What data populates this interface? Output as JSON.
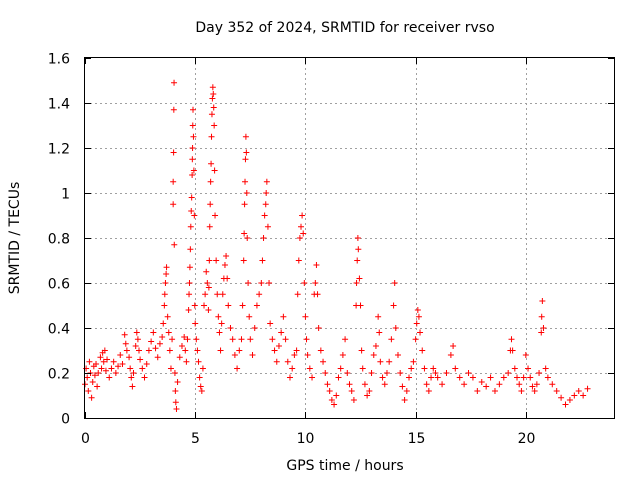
{
  "chart_data": {
    "type": "scatter",
    "title": "Day 352 of 2024, SRMTID for receiver rvso",
    "xlabel": "GPS time / hours",
    "ylabel": "SRMTID / TECUs",
    "xlim": [
      0,
      24
    ],
    "ylim": [
      0,
      1.6
    ],
    "xticks": [
      0,
      5,
      10,
      15,
      20
    ],
    "yticks": [
      0,
      0.2,
      0.4,
      0.6,
      0.8,
      1,
      1.2,
      1.4,
      1.6
    ],
    "grid": true,
    "marker": "plus",
    "color": "#ff0000",
    "series": [
      {
        "name": "SRMTID",
        "points": [
          [
            0.0,
            0.15
          ],
          [
            0.05,
            0.22
          ],
          [
            0.1,
            0.18
          ],
          [
            0.15,
            0.12
          ],
          [
            0.2,
            0.25
          ],
          [
            0.25,
            0.2
          ],
          [
            0.3,
            0.09
          ],
          [
            0.35,
            0.16
          ],
          [
            0.4,
            0.23
          ],
          [
            0.45,
            0.19
          ],
          [
            0.5,
            0.24
          ],
          [
            0.55,
            0.14
          ],
          [
            0.6,
            0.2
          ],
          [
            0.7,
            0.27
          ],
          [
            0.75,
            0.22
          ],
          [
            0.8,
            0.29
          ],
          [
            0.85,
            0.25
          ],
          [
            0.9,
            0.3
          ],
          [
            0.95,
            0.21
          ],
          [
            1.0,
            0.26
          ],
          [
            1.1,
            0.18
          ],
          [
            1.2,
            0.22
          ],
          [
            1.3,
            0.25
          ],
          [
            1.4,
            0.2
          ],
          [
            1.5,
            0.23
          ],
          [
            1.6,
            0.28
          ],
          [
            1.7,
            0.24
          ],
          [
            1.8,
            0.37
          ],
          [
            1.85,
            0.33
          ],
          [
            1.9,
            0.3
          ],
          [
            2.0,
            0.27
          ],
          [
            2.05,
            0.22
          ],
          [
            2.1,
            0.18
          ],
          [
            2.15,
            0.14
          ],
          [
            2.2,
            0.2
          ],
          [
            2.3,
            0.32
          ],
          [
            2.35,
            0.38
          ],
          [
            2.4,
            0.35
          ],
          [
            2.45,
            0.3
          ],
          [
            2.5,
            0.26
          ],
          [
            2.6,
            0.22
          ],
          [
            2.7,
            0.18
          ],
          [
            2.8,
            0.24
          ],
          [
            2.9,
            0.3
          ],
          [
            3.0,
            0.34
          ],
          [
            3.1,
            0.38
          ],
          [
            3.2,
            0.31
          ],
          [
            3.3,
            0.27
          ],
          [
            3.4,
            0.33
          ],
          [
            3.5,
            0.36
          ],
          [
            3.55,
            0.42
          ],
          [
            3.6,
            0.5
          ],
          [
            3.62,
            0.55
          ],
          [
            3.65,
            0.6
          ],
          [
            3.68,
            0.64
          ],
          [
            3.7,
            0.67
          ],
          [
            3.75,
            0.45
          ],
          [
            3.8,
            0.38
          ],
          [
            3.85,
            0.3
          ],
          [
            3.9,
            0.22
          ],
          [
            3.95,
            0.35
          ],
          [
            4.0,
            0.95
          ],
          [
            4.0,
            1.05
          ],
          [
            4.02,
            1.18
          ],
          [
            4.03,
            1.37
          ],
          [
            4.04,
            1.49
          ],
          [
            4.05,
            0.77
          ],
          [
            4.08,
            0.2
          ],
          [
            4.1,
            0.12
          ],
          [
            4.12,
            0.07
          ],
          [
            4.15,
            0.04
          ],
          [
            4.2,
            0.16
          ],
          [
            4.3,
            0.27
          ],
          [
            4.4,
            0.32
          ],
          [
            4.5,
            0.36
          ],
          [
            4.55,
            0.3
          ],
          [
            4.6,
            0.25
          ],
          [
            4.65,
            0.35
          ],
          [
            4.7,
            0.48
          ],
          [
            4.72,
            0.55
          ],
          [
            4.74,
            0.6
          ],
          [
            4.76,
            0.67
          ],
          [
            4.78,
            0.75
          ],
          [
            4.8,
            0.85
          ],
          [
            4.82,
            0.92
          ],
          [
            4.84,
            0.98
          ],
          [
            4.86,
            1.08
          ],
          [
            4.87,
            1.15
          ],
          [
            4.88,
            1.2
          ],
          [
            4.89,
            1.3
          ],
          [
            4.9,
            1.37
          ],
          [
            4.92,
            1.25
          ],
          [
            4.94,
            1.1
          ],
          [
            4.96,
            0.9
          ],
          [
            4.98,
            0.5
          ],
          [
            5.0,
            0.42
          ],
          [
            5.05,
            0.35
          ],
          [
            5.1,
            0.3
          ],
          [
            5.15,
            0.25
          ],
          [
            5.2,
            0.18
          ],
          [
            5.25,
            0.14
          ],
          [
            5.3,
            0.12
          ],
          [
            5.35,
            0.22
          ],
          [
            5.4,
            0.5
          ],
          [
            5.45,
            0.55
          ],
          [
            5.5,
            0.65
          ],
          [
            5.55,
            0.6
          ],
          [
            5.6,
            0.48
          ],
          [
            5.62,
            0.58
          ],
          [
            5.64,
            0.7
          ],
          [
            5.66,
            0.85
          ],
          [
            5.68,
            0.95
          ],
          [
            5.7,
            1.05
          ],
          [
            5.72,
            1.13
          ],
          [
            5.74,
            1.25
          ],
          [
            5.76,
            1.35
          ],
          [
            5.78,
            1.42
          ],
          [
            5.8,
            1.47
          ],
          [
            5.82,
            1.44
          ],
          [
            5.84,
            1.38
          ],
          [
            5.86,
            1.3
          ],
          [
            5.88,
            1.1
          ],
          [
            5.9,
            0.9
          ],
          [
            5.95,
            0.7
          ],
          [
            6.0,
            0.55
          ],
          [
            6.05,
            0.45
          ],
          [
            6.1,
            0.38
          ],
          [
            6.15,
            0.3
          ],
          [
            6.2,
            0.42
          ],
          [
            6.25,
            0.55
          ],
          [
            6.3,
            0.62
          ],
          [
            6.35,
            0.68
          ],
          [
            6.4,
            0.72
          ],
          [
            6.45,
            0.62
          ],
          [
            6.5,
            0.5
          ],
          [
            6.6,
            0.4
          ],
          [
            6.7,
            0.35
          ],
          [
            6.8,
            0.28
          ],
          [
            6.9,
            0.22
          ],
          [
            7.0,
            0.3
          ],
          [
            7.1,
            0.35
          ],
          [
            7.15,
            0.5
          ],
          [
            7.2,
            0.7
          ],
          [
            7.22,
            0.82
          ],
          [
            7.24,
            0.95
          ],
          [
            7.26,
            1.05
          ],
          [
            7.28,
            1.15
          ],
          [
            7.3,
            1.25
          ],
          [
            7.32,
            1.18
          ],
          [
            7.34,
            1.0
          ],
          [
            7.36,
            0.8
          ],
          [
            7.4,
            0.6
          ],
          [
            7.45,
            0.45
          ],
          [
            7.5,
            0.35
          ],
          [
            7.6,
            0.28
          ],
          [
            7.7,
            0.4
          ],
          [
            7.8,
            0.5
          ],
          [
            7.9,
            0.55
          ],
          [
            8.0,
            0.6
          ],
          [
            8.05,
            0.7
          ],
          [
            8.1,
            0.8
          ],
          [
            8.15,
            0.9
          ],
          [
            8.2,
            0.95
          ],
          [
            8.22,
            1.0
          ],
          [
            8.25,
            1.05
          ],
          [
            8.3,
            0.85
          ],
          [
            8.35,
            0.6
          ],
          [
            8.4,
            0.42
          ],
          [
            8.5,
            0.35
          ],
          [
            8.6,
            0.3
          ],
          [
            8.7,
            0.25
          ],
          [
            8.8,
            0.32
          ],
          [
            8.9,
            0.38
          ],
          [
            9.0,
            0.45
          ],
          [
            9.1,
            0.35
          ],
          [
            9.2,
            0.25
          ],
          [
            9.3,
            0.18
          ],
          [
            9.4,
            0.22
          ],
          [
            9.5,
            0.28
          ],
          [
            9.6,
            0.3
          ],
          [
            9.65,
            0.55
          ],
          [
            9.7,
            0.7
          ],
          [
            9.75,
            0.8
          ],
          [
            9.8,
            0.85
          ],
          [
            9.85,
            0.9
          ],
          [
            9.9,
            0.82
          ],
          [
            9.95,
            0.6
          ],
          [
            10.0,
            0.45
          ],
          [
            10.05,
            0.35
          ],
          [
            10.1,
            0.28
          ],
          [
            10.2,
            0.22
          ],
          [
            10.3,
            0.18
          ],
          [
            10.4,
            0.55
          ],
          [
            10.45,
            0.6
          ],
          [
            10.5,
            0.68
          ],
          [
            10.55,
            0.55
          ],
          [
            10.6,
            0.4
          ],
          [
            10.7,
            0.3
          ],
          [
            10.8,
            0.25
          ],
          [
            10.9,
            0.2
          ],
          [
            11.0,
            0.15
          ],
          [
            11.1,
            0.12
          ],
          [
            11.2,
            0.08
          ],
          [
            11.3,
            0.06
          ],
          [
            11.4,
            0.1
          ],
          [
            11.5,
            0.18
          ],
          [
            11.6,
            0.22
          ],
          [
            11.7,
            0.28
          ],
          [
            11.8,
            0.35
          ],
          [
            11.9,
            0.2
          ],
          [
            12.0,
            0.15
          ],
          [
            12.1,
            0.12
          ],
          [
            12.2,
            0.08
          ],
          [
            12.3,
            0.5
          ],
          [
            12.32,
            0.6
          ],
          [
            12.35,
            0.7
          ],
          [
            12.38,
            0.8
          ],
          [
            12.4,
            0.75
          ],
          [
            12.45,
            0.62
          ],
          [
            12.5,
            0.5
          ],
          [
            12.55,
            0.3
          ],
          [
            12.6,
            0.22
          ],
          [
            12.7,
            0.15
          ],
          [
            12.8,
            0.1
          ],
          [
            12.9,
            0.12
          ],
          [
            13.0,
            0.2
          ],
          [
            13.1,
            0.28
          ],
          [
            13.2,
            0.32
          ],
          [
            13.3,
            0.45
          ],
          [
            13.35,
            0.38
          ],
          [
            13.4,
            0.25
          ],
          [
            13.5,
            0.18
          ],
          [
            13.6,
            0.15
          ],
          [
            13.7,
            0.2
          ],
          [
            13.8,
            0.25
          ],
          [
            13.9,
            0.35
          ],
          [
            14.0,
            0.5
          ],
          [
            14.05,
            0.6
          ],
          [
            14.1,
            0.4
          ],
          [
            14.2,
            0.28
          ],
          [
            14.3,
            0.2
          ],
          [
            14.4,
            0.14
          ],
          [
            14.5,
            0.08
          ],
          [
            14.6,
            0.12
          ],
          [
            14.7,
            0.18
          ],
          [
            14.8,
            0.22
          ],
          [
            14.9,
            0.25
          ],
          [
            15.0,
            0.35
          ],
          [
            15.05,
            0.42
          ],
          [
            15.1,
            0.48
          ],
          [
            15.15,
            0.45
          ],
          [
            15.2,
            0.38
          ],
          [
            15.3,
            0.3
          ],
          [
            15.4,
            0.22
          ],
          [
            15.5,
            0.15
          ],
          [
            15.6,
            0.12
          ],
          [
            15.7,
            0.18
          ],
          [
            15.8,
            0.22
          ],
          [
            15.9,
            0.2
          ],
          [
            16.0,
            0.18
          ],
          [
            16.2,
            0.15
          ],
          [
            16.4,
            0.2
          ],
          [
            16.6,
            0.28
          ],
          [
            16.7,
            0.32
          ],
          [
            16.8,
            0.22
          ],
          [
            17.0,
            0.18
          ],
          [
            17.2,
            0.15
          ],
          [
            17.4,
            0.2
          ],
          [
            17.6,
            0.18
          ],
          [
            17.8,
            0.12
          ],
          [
            18.0,
            0.16
          ],
          [
            18.2,
            0.14
          ],
          [
            18.4,
            0.18
          ],
          [
            18.6,
            0.12
          ],
          [
            18.8,
            0.15
          ],
          [
            19.0,
            0.18
          ],
          [
            19.2,
            0.2
          ],
          [
            19.3,
            0.3
          ],
          [
            19.35,
            0.35
          ],
          [
            19.4,
            0.3
          ],
          [
            19.5,
            0.22
          ],
          [
            19.6,
            0.18
          ],
          [
            19.7,
            0.15
          ],
          [
            19.8,
            0.12
          ],
          [
            19.9,
            0.18
          ],
          [
            20.0,
            0.28
          ],
          [
            20.1,
            0.22
          ],
          [
            20.2,
            0.18
          ],
          [
            20.3,
            0.14
          ],
          [
            20.4,
            0.12
          ],
          [
            20.5,
            0.15
          ],
          [
            20.6,
            0.2
          ],
          [
            20.7,
            0.38
          ],
          [
            20.72,
            0.45
          ],
          [
            20.75,
            0.52
          ],
          [
            20.8,
            0.4
          ],
          [
            20.9,
            0.22
          ],
          [
            21.0,
            0.18
          ],
          [
            21.2,
            0.15
          ],
          [
            21.4,
            0.12
          ],
          [
            21.6,
            0.09
          ],
          [
            21.8,
            0.06
          ],
          [
            22.0,
            0.08
          ],
          [
            22.2,
            0.1
          ],
          [
            22.4,
            0.12
          ],
          [
            22.6,
            0.1
          ],
          [
            22.8,
            0.13
          ]
        ]
      }
    ]
  }
}
